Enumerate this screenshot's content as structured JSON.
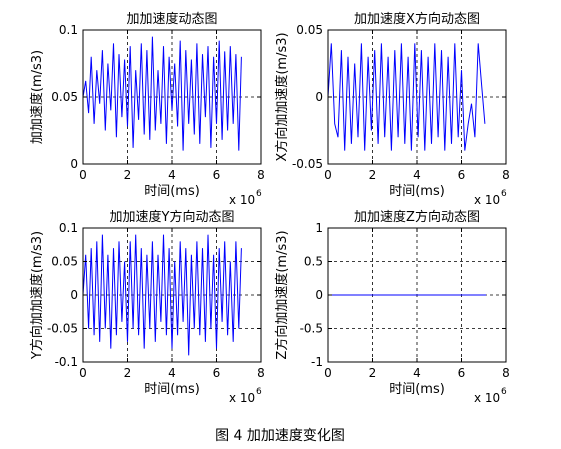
{
  "figure": {
    "caption": "图 4  加加速度变化图"
  },
  "chart_data": [
    {
      "type": "line",
      "title": "加加速度动态图",
      "xlabel": "时间(ms)",
      "ylabel": "加加速度(m/s3)",
      "x_multiplier": "x 10",
      "x_multiplier_exp": "6",
      "xlim": [
        0,
        8
      ],
      "ylim": [
        0,
        0.1
      ],
      "xticks": [
        "0",
        "2",
        "4",
        "6",
        "8"
      ],
      "yticks": [
        "0",
        "0.05",
        "0.1"
      ],
      "grid": "dashed",
      "color": "#0000ff",
      "series": [
        {
          "x": [
            0.0,
            0.12,
            0.25,
            0.37,
            0.5,
            0.62,
            0.75,
            0.87,
            1.0,
            1.12,
            1.25,
            1.37,
            1.5,
            1.62,
            1.75,
            1.87,
            2.0,
            2.12,
            2.25,
            2.37,
            2.5,
            2.62,
            2.75,
            2.87,
            3.0,
            3.12,
            3.25,
            3.37,
            3.5,
            3.62,
            3.75,
            3.87,
            4.0,
            4.12,
            4.25,
            4.37,
            4.5,
            4.62,
            4.75,
            4.87,
            5.0,
            5.12,
            5.25,
            5.37,
            5.5,
            5.62,
            5.75,
            5.87,
            6.0,
            6.12,
            6.25,
            6.37,
            6.5,
            6.62,
            6.75,
            6.87,
            7.0,
            7.12
          ],
          "y": [
            0.05,
            0.062,
            0.038,
            0.08,
            0.03,
            0.07,
            0.045,
            0.085,
            0.025,
            0.075,
            0.04,
            0.09,
            0.02,
            0.082,
            0.035,
            0.078,
            0.028,
            0.088,
            0.012,
            0.07,
            0.033,
            0.09,
            0.022,
            0.085,
            0.018,
            0.095,
            0.025,
            0.07,
            0.03,
            0.088,
            0.015,
            0.08,
            0.04,
            0.075,
            0.028,
            0.092,
            0.01,
            0.085,
            0.03,
            0.078,
            0.022,
            0.09,
            0.015,
            0.082,
            0.035,
            0.088,
            0.012,
            0.08,
            0.03,
            0.092,
            0.018,
            0.084,
            0.025,
            0.088,
            0.03,
            0.082,
            0.01,
            0.08
          ]
        }
      ]
    },
    {
      "type": "line",
      "title": "加加速度X方向动态图",
      "xlabel": "时间(ms)",
      "ylabel": "X方向加加速度(m/s3)",
      "x_multiplier": "x 10",
      "x_multiplier_exp": "6",
      "xlim": [
        0,
        8
      ],
      "ylim": [
        -0.05,
        0.05
      ],
      "xticks": [
        "0",
        "2",
        "4",
        "6",
        "8"
      ],
      "yticks": [
        "-0.05",
        "0",
        "0.05"
      ],
      "grid": "dashed",
      "color": "#0000ff",
      "series": [
        {
          "x": [
            0.0,
            0.15,
            0.3,
            0.45,
            0.6,
            0.75,
            0.9,
            1.05,
            1.2,
            1.35,
            1.5,
            1.65,
            1.8,
            1.95,
            2.1,
            2.25,
            2.4,
            2.55,
            2.7,
            2.85,
            3.0,
            3.15,
            3.3,
            3.45,
            3.6,
            3.75,
            3.9,
            4.05,
            4.2,
            4.35,
            4.5,
            4.65,
            4.8,
            4.95,
            5.1,
            5.25,
            5.4,
            5.55,
            5.7,
            5.85,
            6.0,
            6.15,
            6.3,
            6.45,
            6.6,
            6.75,
            6.9,
            7.05
          ],
          "y": [
            0.0,
            0.04,
            -0.02,
            -0.03,
            0.035,
            -0.04,
            0.03,
            -0.035,
            0.025,
            -0.03,
            0.04,
            -0.04,
            0.03,
            -0.025,
            0.035,
            -0.035,
            0.04,
            -0.03,
            0.03,
            -0.04,
            0.035,
            -0.03,
            0.04,
            -0.035,
            0.03,
            -0.04,
            0.04,
            -0.03,
            0.035,
            -0.04,
            0.03,
            -0.035,
            0.04,
            -0.03,
            0.035,
            -0.04,
            0.03,
            -0.035,
            0.04,
            -0.03,
            0.02,
            -0.04,
            -0.02,
            -0.005,
            -0.03,
            0.04,
            0.01,
            -0.02
          ]
        }
      ]
    },
    {
      "type": "line",
      "title": "加加速度Y方向动态图",
      "xlabel": "时间(ms)",
      "ylabel": "Y方向加加速度(m/s3)",
      "x_multiplier": "x 10",
      "x_multiplier_exp": "6",
      "xlim": [
        0,
        8
      ],
      "ylim": [
        -0.1,
        0.1
      ],
      "xticks": [
        "0",
        "2",
        "4",
        "6",
        "8"
      ],
      "yticks": [
        "-0.1",
        "-0.05",
        "0",
        "0.05",
        "0.1"
      ],
      "grid": "dashed",
      "color": "#0000ff",
      "series": [
        {
          "x": [
            0.0,
            0.12,
            0.25,
            0.37,
            0.5,
            0.62,
            0.75,
            0.87,
            1.0,
            1.12,
            1.25,
            1.37,
            1.5,
            1.62,
            1.75,
            1.87,
            2.0,
            2.12,
            2.25,
            2.37,
            2.5,
            2.62,
            2.75,
            2.87,
            3.0,
            3.12,
            3.25,
            3.37,
            3.5,
            3.62,
            3.75,
            3.87,
            4.0,
            4.12,
            4.25,
            4.37,
            4.5,
            4.62,
            4.75,
            4.87,
            5.0,
            5.12,
            5.25,
            5.37,
            5.5,
            5.62,
            5.75,
            5.87,
            6.0,
            6.12,
            6.25,
            6.37,
            6.5,
            6.62,
            6.75,
            6.87,
            7.0,
            7.12
          ],
          "y": [
            0.0,
            0.06,
            -0.05,
            0.07,
            -0.06,
            0.08,
            -0.07,
            0.09,
            -0.05,
            0.06,
            -0.08,
            0.07,
            -0.06,
            0.08,
            -0.04,
            0.05,
            -0.07,
            0.08,
            -0.05,
            0.09,
            -0.06,
            0.07,
            -0.08,
            0.06,
            -0.05,
            0.08,
            -0.07,
            0.06,
            -0.04,
            0.09,
            -0.06,
            0.07,
            -0.08,
            0.05,
            -0.06,
            0.08,
            -0.04,
            0.07,
            -0.09,
            0.06,
            -0.05,
            0.08,
            -0.06,
            0.07,
            -0.07,
            0.09,
            -0.05,
            0.06,
            -0.08,
            0.07,
            -0.04,
            0.08,
            -0.06,
            0.05,
            -0.07,
            0.08,
            -0.05,
            0.07
          ]
        }
      ]
    },
    {
      "type": "line",
      "title": "加加速度Z方向动态图",
      "xlabel": "时间(ms)",
      "ylabel": "Z方向加加速度(m/s3)",
      "x_multiplier": "x 10",
      "x_multiplier_exp": "6",
      "xlim": [
        0,
        8
      ],
      "ylim": [
        -1,
        1
      ],
      "xticks": [
        "0",
        "2",
        "4",
        "6",
        "8"
      ],
      "yticks": [
        "-1",
        "-0.5",
        "0",
        "0.5",
        "1"
      ],
      "grid": "dashed",
      "color": "#0000ff",
      "series": [
        {
          "x": [
            0.0,
            7.1
          ],
          "y": [
            0,
            0
          ]
        }
      ]
    }
  ]
}
